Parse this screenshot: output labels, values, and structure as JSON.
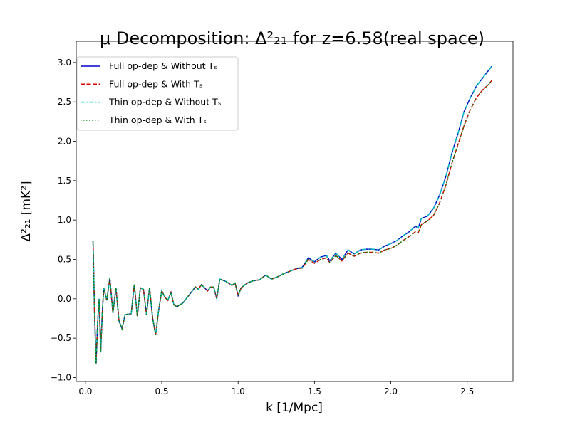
{
  "chart_data": {
    "type": "line",
    "title": "μ Decomposition: Δ²₂₁ for z=6.58(real space)",
    "xlabel": "k [1/Mpc]",
    "ylabel": "Δ²₂₁ [mK²]",
    "x": [
      0.05,
      0.06,
      0.07,
      0.08,
      0.09,
      0.1,
      0.11,
      0.12,
      0.14,
      0.16,
      0.18,
      0.2,
      0.22,
      0.24,
      0.26,
      0.3,
      0.32,
      0.34,
      0.36,
      0.38,
      0.4,
      0.42,
      0.44,
      0.46,
      0.48,
      0.5,
      0.52,
      0.54,
      0.56,
      0.58,
      0.6,
      0.64,
      0.68,
      0.72,
      0.74,
      0.76,
      0.8,
      0.82,
      0.84,
      0.86,
      0.88,
      0.92,
      0.96,
      0.98,
      1.0,
      1.02,
      1.06,
      1.1,
      1.14,
      1.18,
      1.22,
      1.26,
      1.3,
      1.34,
      1.38,
      1.42,
      1.46,
      1.5,
      1.54,
      1.58,
      1.6,
      1.64,
      1.68,
      1.72,
      1.76,
      1.8,
      1.84,
      1.88,
      1.92,
      1.96,
      2.0,
      2.04,
      2.08,
      2.12,
      2.16,
      2.18,
      2.2,
      2.24,
      2.28,
      2.32,
      2.36,
      2.4,
      2.44,
      2.48,
      2.52,
      2.56,
      2.6,
      2.64,
      2.66
    ],
    "series": [
      {
        "name": "Full op-dep & Without Tₛ",
        "color": "#0000cc",
        "linestyle": "solid",
        "values": [
          0.73,
          -0.2,
          -0.82,
          -0.3,
          0.0,
          -0.68,
          -0.2,
          0.14,
          -0.02,
          0.26,
          -0.18,
          0.14,
          -0.28,
          -0.38,
          -0.2,
          -0.19,
          0.18,
          -0.22,
          0.14,
          0.12,
          -0.2,
          0.14,
          -0.24,
          -0.46,
          -0.14,
          0.1,
          0.02,
          -0.02,
          0.08,
          -0.08,
          -0.1,
          -0.05,
          0.05,
          0.15,
          0.12,
          0.18,
          0.1,
          0.15,
          0.15,
          0.0,
          0.25,
          0.22,
          0.17,
          0.2,
          0.04,
          0.14,
          0.2,
          0.23,
          0.24,
          0.3,
          0.25,
          0.28,
          0.32,
          0.35,
          0.38,
          0.4,
          0.52,
          0.47,
          0.53,
          0.55,
          0.48,
          0.58,
          0.5,
          0.62,
          0.57,
          0.62,
          0.63,
          0.63,
          0.62,
          0.67,
          0.7,
          0.74,
          0.8,
          0.85,
          0.92,
          0.9,
          1.02,
          1.05,
          1.15,
          1.32,
          1.55,
          1.85,
          2.1,
          2.38,
          2.55,
          2.7,
          2.8,
          2.9,
          2.95
        ]
      },
      {
        "name": "Full op-dep & With Tₛ",
        "color": "#dd0000",
        "linestyle": "dashed",
        "values": [
          0.73,
          -0.2,
          -0.82,
          -0.3,
          0.0,
          -0.68,
          -0.2,
          0.14,
          -0.02,
          0.26,
          -0.18,
          0.14,
          -0.28,
          -0.38,
          -0.2,
          -0.19,
          0.18,
          -0.22,
          0.14,
          0.12,
          -0.2,
          0.14,
          -0.24,
          -0.46,
          -0.14,
          0.1,
          0.02,
          -0.02,
          0.08,
          -0.08,
          -0.1,
          -0.05,
          0.05,
          0.15,
          0.12,
          0.18,
          0.1,
          0.15,
          0.15,
          0.0,
          0.25,
          0.22,
          0.17,
          0.2,
          0.04,
          0.14,
          0.2,
          0.23,
          0.24,
          0.3,
          0.25,
          0.28,
          0.32,
          0.35,
          0.38,
          0.39,
          0.5,
          0.45,
          0.5,
          0.52,
          0.46,
          0.55,
          0.48,
          0.58,
          0.54,
          0.58,
          0.59,
          0.59,
          0.58,
          0.62,
          0.64,
          0.68,
          0.74,
          0.79,
          0.85,
          0.84,
          0.94,
          0.99,
          1.06,
          1.22,
          1.44,
          1.72,
          1.96,
          2.2,
          2.4,
          2.55,
          2.65,
          2.72,
          2.77
        ]
      },
      {
        "name": "Thin op-dep & Without Tₛ",
        "color": "#00bfbf",
        "linestyle": "dashdot",
        "values": [
          0.73,
          -0.2,
          -0.82,
          -0.3,
          0.0,
          -0.68,
          -0.2,
          0.14,
          -0.02,
          0.26,
          -0.18,
          0.14,
          -0.28,
          -0.38,
          -0.2,
          -0.19,
          0.18,
          -0.22,
          0.14,
          0.12,
          -0.2,
          0.14,
          -0.24,
          -0.46,
          -0.14,
          0.1,
          0.02,
          -0.02,
          0.08,
          -0.08,
          -0.1,
          -0.05,
          0.05,
          0.15,
          0.12,
          0.18,
          0.1,
          0.15,
          0.15,
          0.0,
          0.25,
          0.22,
          0.17,
          0.2,
          0.04,
          0.14,
          0.2,
          0.23,
          0.24,
          0.3,
          0.25,
          0.28,
          0.32,
          0.35,
          0.38,
          0.4,
          0.52,
          0.47,
          0.53,
          0.55,
          0.48,
          0.58,
          0.5,
          0.62,
          0.57,
          0.62,
          0.63,
          0.63,
          0.62,
          0.67,
          0.7,
          0.74,
          0.8,
          0.85,
          0.92,
          0.9,
          1.02,
          1.05,
          1.15,
          1.32,
          1.55,
          1.85,
          2.1,
          2.38,
          2.55,
          2.7,
          2.8,
          2.9,
          2.95
        ]
      },
      {
        "name": "Thin op-dep & With Tₛ",
        "color": "#008000",
        "linestyle": "dotted",
        "values": [
          0.73,
          -0.2,
          -0.82,
          -0.3,
          0.0,
          -0.68,
          -0.2,
          0.14,
          -0.02,
          0.26,
          -0.18,
          0.14,
          -0.28,
          -0.38,
          -0.2,
          -0.19,
          0.18,
          -0.22,
          0.14,
          0.12,
          -0.2,
          0.14,
          -0.24,
          -0.46,
          -0.14,
          0.1,
          0.02,
          -0.02,
          0.08,
          -0.08,
          -0.1,
          -0.05,
          0.05,
          0.15,
          0.12,
          0.18,
          0.1,
          0.15,
          0.15,
          0.0,
          0.25,
          0.22,
          0.17,
          0.2,
          0.04,
          0.14,
          0.2,
          0.23,
          0.24,
          0.3,
          0.25,
          0.28,
          0.32,
          0.35,
          0.38,
          0.39,
          0.5,
          0.45,
          0.5,
          0.52,
          0.46,
          0.55,
          0.48,
          0.58,
          0.54,
          0.58,
          0.59,
          0.59,
          0.58,
          0.62,
          0.64,
          0.68,
          0.74,
          0.79,
          0.85,
          0.84,
          0.94,
          0.99,
          1.06,
          1.22,
          1.44,
          1.72,
          1.96,
          2.2,
          2.4,
          2.55,
          2.65,
          2.72,
          2.77
        ]
      }
    ],
    "xlim": [
      -0.06,
      2.8
    ],
    "ylim": [
      -1.05,
      3.27
    ],
    "xticks": [
      {
        "value": 0,
        "label": "0.0"
      },
      0.5,
      {
        "value": 1,
        "label": "1.0"
      },
      1.5,
      {
        "value": 2,
        "label": "2.0"
      },
      2.5
    ],
    "yticks": [
      {
        "value": -1,
        "label": "−1.0"
      },
      {
        "value": -0.5,
        "label": "−0.5"
      },
      {
        "value": 0,
        "label": "0.0"
      },
      0.5,
      {
        "value": 1,
        "label": "1.0"
      },
      1.5,
      {
        "value": 2,
        "label": "2.0"
      },
      2.5,
      {
        "value": 3,
        "label": "3.0"
      }
    ],
    "grid": false,
    "legend": "upper left"
  }
}
